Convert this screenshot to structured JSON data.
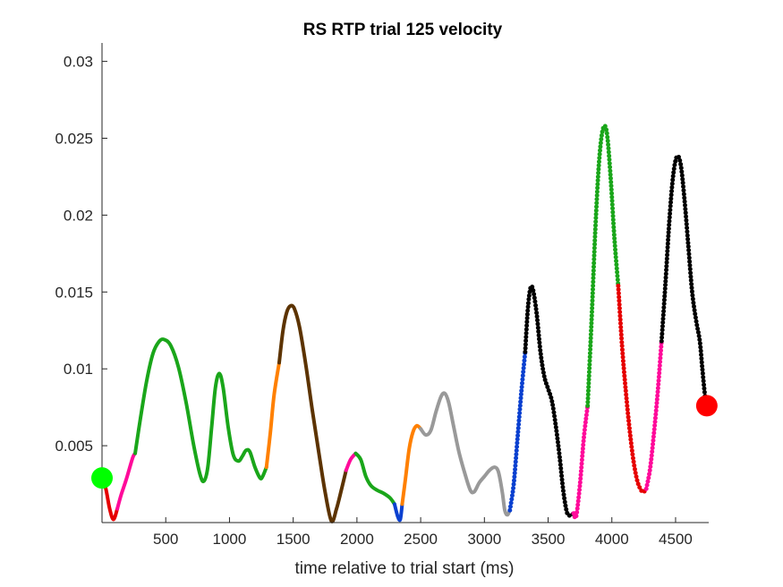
{
  "chart_data": {
    "type": "line",
    "title": "RS  RTP trial 125 velocity",
    "xlabel": "time relative to trial start (ms)",
    "ylabel": "",
    "xlim": [
      0,
      4760
    ],
    "ylim": [
      0,
      0.0312
    ],
    "x_ticks": [
      500,
      1000,
      1500,
      2000,
      2500,
      3000,
      3500,
      4000,
      4500
    ],
    "x_tick_labels": [
      "500",
      "1000",
      "1500",
      "2000",
      "2500",
      "3000",
      "3500",
      "4000",
      "4500"
    ],
    "y_ticks": [
      0.005,
      0.01,
      0.015,
      0.02,
      0.025,
      0.03
    ],
    "y_tick_labels": [
      "0.005",
      "0.01",
      "0.015",
      "0.02",
      "0.025",
      "0.03"
    ],
    "grid": false,
    "box": "left-bottom",
    "colors": {
      "red": "#e60000",
      "pink": "#ff0a9a",
      "green": "#1aa61a",
      "orange": "#ff8000",
      "brown": "#5c3300",
      "blue": "#0a40d0",
      "gray": "#999999",
      "black": "#000000",
      "start_marker": "#00ff00",
      "end_marker": "#ff0000"
    },
    "series": [
      {
        "color": "red",
        "style": "line",
        "points": [
          [
            0,
            0.0029
          ],
          [
            30,
            0.0022
          ],
          [
            60,
            0.0009
          ],
          [
            90,
            0.0002
          ],
          [
            120,
            0.0009
          ]
        ]
      },
      {
        "color": "pink",
        "style": "line",
        "points": [
          [
            120,
            0.0009
          ],
          [
            150,
            0.0018
          ],
          [
            190,
            0.0028
          ],
          [
            240,
            0.0042
          ],
          [
            260,
            0.0045
          ]
        ]
      },
      {
        "color": "green",
        "style": "line",
        "points": [
          [
            260,
            0.0045
          ],
          [
            300,
            0.0067
          ],
          [
            350,
            0.0092
          ],
          [
            400,
            0.011
          ],
          [
            450,
            0.0118
          ],
          [
            490,
            0.0119
          ],
          [
            540,
            0.0115
          ],
          [
            600,
            0.0101
          ],
          [
            660,
            0.0078
          ],
          [
            720,
            0.005
          ],
          [
            770,
            0.0031
          ],
          [
            800,
            0.0027
          ],
          [
            830,
            0.0036
          ],
          [
            860,
            0.0062
          ],
          [
            890,
            0.0088
          ],
          [
            920,
            0.0097
          ],
          [
            950,
            0.0088
          ],
          [
            990,
            0.0062
          ],
          [
            1030,
            0.0044
          ],
          [
            1070,
            0.004
          ],
          [
            1100,
            0.0043
          ],
          [
            1130,
            0.0047
          ],
          [
            1160,
            0.0046
          ],
          [
            1200,
            0.0036
          ],
          [
            1240,
            0.0029
          ],
          [
            1260,
            0.003
          ],
          [
            1290,
            0.0036
          ]
        ]
      },
      {
        "color": "orange",
        "style": "line",
        "points": [
          [
            1290,
            0.0036
          ],
          [
            1320,
            0.0058
          ],
          [
            1350,
            0.0083
          ],
          [
            1390,
            0.0104
          ]
        ]
      },
      {
        "color": "brown",
        "style": "line",
        "points": [
          [
            1390,
            0.0104
          ],
          [
            1420,
            0.0125
          ],
          [
            1450,
            0.0137
          ],
          [
            1480,
            0.0141
          ],
          [
            1510,
            0.0139
          ],
          [
            1550,
            0.0127
          ],
          [
            1600,
            0.0102
          ],
          [
            1650,
            0.0073
          ],
          [
            1700,
            0.0046
          ],
          [
            1750,
            0.002
          ],
          [
            1800,
            0.0001
          ],
          [
            1840,
            0.0009
          ],
          [
            1880,
            0.0022
          ],
          [
            1915,
            0.0034
          ]
        ]
      },
      {
        "color": "pink",
        "style": "line",
        "points": [
          [
            1915,
            0.0034
          ],
          [
            1950,
            0.0041
          ],
          [
            1990,
            0.0045
          ]
        ]
      },
      {
        "color": "green",
        "style": "line",
        "points": [
          [
            1990,
            0.0045
          ],
          [
            2030,
            0.0041
          ],
          [
            2070,
            0.003
          ],
          [
            2110,
            0.0024
          ],
          [
            2160,
            0.0021
          ],
          [
            2210,
            0.0019
          ],
          [
            2260,
            0.0016
          ],
          [
            2295,
            0.0012
          ]
        ]
      },
      {
        "color": "blue",
        "style": "line",
        "points": [
          [
            2295,
            0.0012
          ],
          [
            2320,
            0.0004
          ],
          [
            2340,
            0.0002
          ],
          [
            2355,
            0.0012
          ]
        ]
      },
      {
        "color": "orange",
        "style": "line",
        "points": [
          [
            2355,
            0.0012
          ],
          [
            2380,
            0.0028
          ],
          [
            2410,
            0.0048
          ],
          [
            2440,
            0.0059
          ],
          [
            2470,
            0.0063
          ],
          [
            2500,
            0.0061
          ]
        ]
      },
      {
        "color": "gray",
        "style": "line",
        "points": [
          [
            2500,
            0.0061
          ],
          [
            2540,
            0.0057
          ],
          [
            2580,
            0.006
          ],
          [
            2620,
            0.0072
          ],
          [
            2660,
            0.0082
          ],
          [
            2690,
            0.0084
          ],
          [
            2720,
            0.0078
          ],
          [
            2760,
            0.0062
          ],
          [
            2800,
            0.0046
          ],
          [
            2850,
            0.0031
          ],
          [
            2890,
            0.0021
          ],
          [
            2920,
            0.002
          ],
          [
            2960,
            0.0026
          ],
          [
            3000,
            0.003
          ],
          [
            3040,
            0.0034
          ],
          [
            3080,
            0.0036
          ],
          [
            3110,
            0.0033
          ],
          [
            3140,
            0.002
          ],
          [
            3160,
            0.0008
          ],
          [
            3180,
            0.0005
          ],
          [
            3200,
            0.0008
          ]
        ]
      },
      {
        "color": "blue",
        "style": "dots",
        "points": [
          [
            3200,
            0.0008
          ],
          [
            3230,
            0.0025
          ],
          [
            3260,
            0.0055
          ],
          [
            3290,
            0.0085
          ],
          [
            3320,
            0.0111
          ]
        ]
      },
      {
        "color": "black",
        "style": "dots",
        "points": [
          [
            3320,
            0.0111
          ],
          [
            3340,
            0.0138
          ],
          [
            3360,
            0.0152
          ],
          [
            3380,
            0.0152
          ],
          [
            3410,
            0.0136
          ],
          [
            3440,
            0.0111
          ],
          [
            3470,
            0.0095
          ],
          [
            3500,
            0.0087
          ],
          [
            3530,
            0.0079
          ],
          [
            3560,
            0.0063
          ],
          [
            3590,
            0.0043
          ],
          [
            3620,
            0.002
          ],
          [
            3650,
            0.0006
          ],
          [
            3680,
            0.0005
          ],
          [
            3700,
            0.0006
          ]
        ]
      },
      {
        "color": "pink",
        "style": "dots",
        "points": [
          [
            3700,
            0.0006
          ],
          [
            3720,
            0.0004
          ],
          [
            3750,
            0.0025
          ],
          [
            3780,
            0.0055
          ],
          [
            3810,
            0.0076
          ]
        ]
      },
      {
        "color": "green",
        "style": "dots",
        "points": [
          [
            3810,
            0.0076
          ],
          [
            3840,
            0.013
          ],
          [
            3870,
            0.019
          ],
          [
            3900,
            0.0235
          ],
          [
            3930,
            0.0256
          ],
          [
            3960,
            0.0254
          ],
          [
            3990,
            0.0225
          ],
          [
            4020,
            0.0185
          ],
          [
            4050,
            0.0154
          ]
        ]
      },
      {
        "color": "red",
        "style": "dots",
        "points": [
          [
            4050,
            0.0154
          ],
          [
            4080,
            0.0115
          ],
          [
            4110,
            0.0085
          ],
          [
            4140,
            0.006
          ],
          [
            4170,
            0.004
          ],
          [
            4200,
            0.0027
          ],
          [
            4230,
            0.0021
          ],
          [
            4250,
            0.002
          ],
          [
            4270,
            0.0022
          ]
        ]
      },
      {
        "color": "pink",
        "style": "dots",
        "points": [
          [
            4270,
            0.0022
          ],
          [
            4300,
            0.0035
          ],
          [
            4330,
            0.0058
          ],
          [
            4360,
            0.0085
          ],
          [
            4390,
            0.0118
          ]
        ]
      },
      {
        "color": "black",
        "style": "dots",
        "points": [
          [
            4390,
            0.0118
          ],
          [
            4420,
            0.0155
          ],
          [
            4450,
            0.0195
          ],
          [
            4480,
            0.0225
          ],
          [
            4510,
            0.0238
          ],
          [
            4540,
            0.0233
          ],
          [
            4570,
            0.021
          ],
          [
            4600,
            0.018
          ],
          [
            4630,
            0.015
          ],
          [
            4660,
            0.0132
          ],
          [
            4690,
            0.0118
          ],
          [
            4710,
            0.01
          ],
          [
            4730,
            0.0083
          ],
          [
            4745,
            0.0076
          ]
        ]
      }
    ],
    "markers": [
      {
        "name": "start",
        "x": 0,
        "y": 0.0029,
        "color": "start_marker"
      },
      {
        "name": "end",
        "x": 4745,
        "y": 0.0076,
        "color": "end_marker"
      }
    ]
  }
}
